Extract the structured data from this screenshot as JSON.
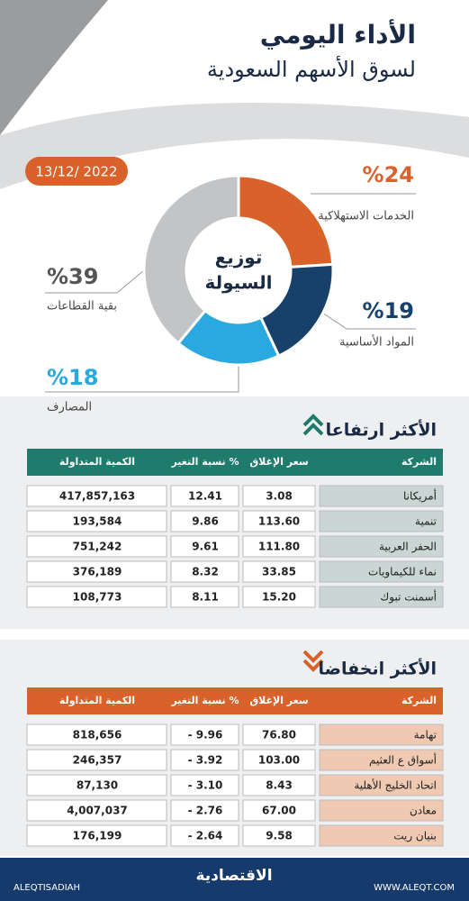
{
  "header": {
    "title": "الأداء اليومي",
    "subtitle": "لسوق الأسهم السعودية",
    "date": "13/12/ 2022"
  },
  "chart_data": {
    "type": "pie",
    "title": "توزيع",
    "subtitle": "السيولة",
    "categories": [
      "الخدمات الاستهلاكية",
      "المواد الأساسية",
      "المصارف",
      "بقية القطاعات"
    ],
    "values": [
      24,
      19,
      18,
      39
    ],
    "value_labels": [
      "%24",
      "%19",
      "%18",
      "%39"
    ],
    "colors": [
      "#d9622b",
      "#17406b",
      "#2aa8e0",
      "#c2c4c6"
    ]
  },
  "gainers": {
    "title": "الأكثر ارتفاعا",
    "header": [
      "الشركة",
      "سعر الإغلاق",
      "نسبة التغير %",
      "الكمية المتداولة"
    ],
    "rows": [
      [
        "أمريكانا",
        "3.08",
        "12.41",
        "417,857,163"
      ],
      [
        "تنمية",
        "113.60",
        "9.86",
        "193,584"
      ],
      [
        "الحفر العربية",
        "111.80",
        "9.61",
        "751,242"
      ],
      [
        "نماء للكيماويات",
        "33.85",
        "8.32",
        "376,189"
      ],
      [
        "أسمنت تبوك",
        "15.20",
        "8.11",
        "108,773"
      ]
    ]
  },
  "losers": {
    "title": "الأكثر انخفاضا",
    "header": [
      "الشركة",
      "سعر الإغلاق",
      "نسبة التغير %",
      "الكمية المتداولة"
    ],
    "rows": [
      [
        "تهامة",
        "76.80",
        "- 9.96",
        "818,656"
      ],
      [
        "أسواق ع العثيم",
        "103.00",
        "- 3.92",
        "246,357"
      ],
      [
        "اتحاد الخليج الأهلية",
        "8.43",
        "- 3.10",
        "87,130"
      ],
      [
        "معادن",
        "67.00",
        "- 2.76",
        "4,007,037"
      ],
      [
        "بنيان ريت",
        "9.58",
        "- 2.64",
        "176,199"
      ]
    ]
  },
  "footer": {
    "handle": "ALEQTISADIAH",
    "brand": "الاقتصادية",
    "site": "WWW.ALEQT.COM"
  }
}
